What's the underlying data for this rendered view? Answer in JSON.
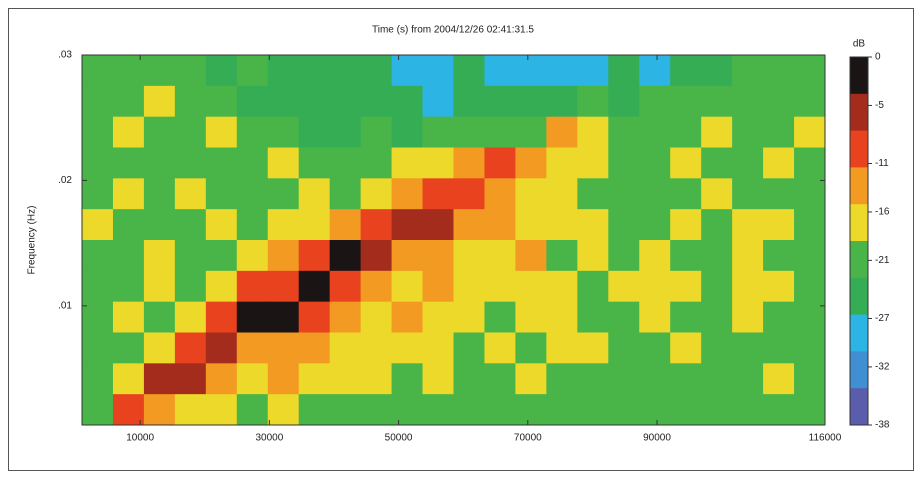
{
  "chart_data": {
    "type": "heatmap",
    "title": "Time (s) from 2004/12/26 02:41:31.5",
    "y_label": "Frequency (Hz)",
    "xlim": [
      1000,
      116000
    ],
    "xticks": [
      10000,
      30000,
      50000,
      70000,
      90000,
      116000
    ],
    "ylim": [
      0.0005,
      0.03
    ],
    "yticks": [
      {
        "value": 0.03,
        "label": ".03"
      },
      {
        "value": 0.02,
        "label": ".02"
      },
      {
        "value": 0.01,
        "label": ".01"
      }
    ],
    "colorbar": {
      "label": "dB",
      "lim": [
        -38,
        0
      ],
      "ticks": [
        0,
        -5,
        -11,
        -16,
        -21,
        -27,
        -32,
        -38
      ],
      "colors": [
        "#1b1414",
        "#a42c1c",
        "#e8431e",
        "#f29a22",
        "#ecd92a",
        "#49b548",
        "#35ad55",
        "#2cb4e4",
        "#3f8fd2",
        "#5a5cac"
      ]
    },
    "z": [
      [
        -21,
        -22,
        -21,
        -22,
        -23,
        -22,
        -24,
        -23,
        -26,
        -25,
        -27,
        -28,
        -26,
        -27,
        -29,
        -28,
        -27,
        -26,
        -27,
        -25,
        -24,
        -22,
        -21,
        -22
      ],
      [
        -20,
        -21,
        -17,
        -21,
        -22,
        -23,
        -24,
        -25,
        -26,
        -24,
        -25,
        -27,
        -26,
        -25,
        -24,
        -23,
        -20,
        -23,
        -22,
        -21,
        -20,
        -22,
        -21,
        -20
      ],
      [
        -21,
        -17,
        -20,
        -21,
        -18,
        -21,
        -22,
        -23,
        -24,
        -22,
        -23,
        -22,
        -21,
        -20,
        -19,
        -15,
        -16,
        -19,
        -20,
        -21,
        -17,
        -20,
        -21,
        -18
      ],
      [
        -20,
        -21,
        -19,
        -20,
        -21,
        -20,
        -18,
        -21,
        -20,
        -19,
        -18,
        -17,
        -15,
        -11,
        -13,
        -16,
        -18,
        -20,
        -19,
        -17,
        -21,
        -20,
        -16,
        -21
      ],
      [
        -21,
        -18,
        -20,
        -17,
        -21,
        -19,
        -20,
        -17,
        -19,
        -16,
        -14,
        -9,
        -8,
        -14,
        -16,
        -17,
        -19,
        -21,
        -20,
        -19,
        -17,
        -21,
        -19,
        -20
      ],
      [
        -18,
        -21,
        -19,
        -20,
        -16,
        -20,
        -18,
        -16,
        -12,
        -10,
        -6,
        -7,
        -13,
        -15,
        -17,
        -18,
        -16,
        -19,
        -21,
        -17,
        -20,
        -18,
        -16,
        -21
      ],
      [
        -21,
        -19,
        -17,
        -21,
        -19,
        -17,
        -14,
        -9,
        -1,
        -4,
        -12,
        -15,
        -16,
        -18,
        -15,
        -19,
        -17,
        -20,
        -16,
        -21,
        -19,
        -17,
        -20,
        -19
      ],
      [
        -20,
        -21,
        -18,
        -19,
        -17,
        -11,
        -8,
        -3,
        -10,
        -13,
        -16,
        -15,
        -17,
        -16,
        -18,
        -16,
        -19,
        -17,
        -18,
        -16,
        -20,
        -17,
        -18,
        -21
      ],
      [
        -21,
        -18,
        -20,
        -16,
        -9,
        -3,
        -1,
        -11,
        -14,
        -16,
        -15,
        -18,
        -16,
        -19,
        -17,
        -18,
        -20,
        -19,
        -17,
        -19,
        -21,
        -18,
        -20,
        -19
      ],
      [
        -19,
        -20,
        -17,
        -8,
        -5,
        -12,
        -13,
        -15,
        -16,
        -18,
        -17,
        -16,
        -19,
        -17,
        -20,
        -18,
        -17,
        -20,
        -19,
        -18,
        -20,
        -19,
        -21,
        -20
      ],
      [
        -20,
        -17,
        -7,
        -6,
        -14,
        -16,
        -15,
        -17,
        -18,
        -16,
        -19,
        -18,
        -20,
        -19,
        -18,
        -20,
        -21,
        -19,
        -20,
        -21,
        -19,
        -20,
        -18,
        -21
      ],
      [
        -21,
        -9,
        -13,
        -16,
        -17,
        -19,
        -18,
        -20,
        -19,
        -21,
        -20,
        -19,
        -21,
        -20,
        -21,
        -22,
        -20,
        -21,
        -22,
        -20,
        -21,
        -22,
        -21,
        -20
      ]
    ]
  }
}
